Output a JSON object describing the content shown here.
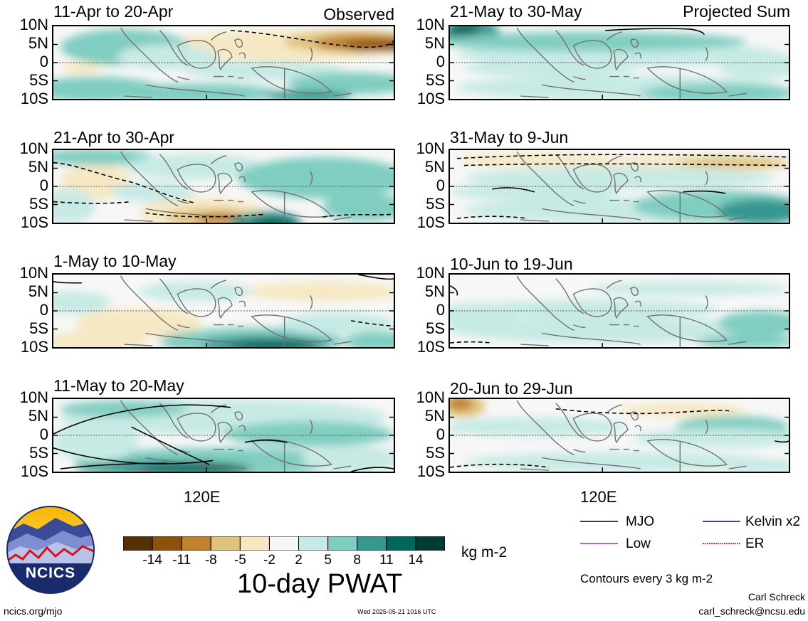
{
  "panels": {
    "left": [
      {
        "label": "11-Apr to 20-Apr",
        "corner": "Observed"
      },
      {
        "label": "21-Apr to 30-Apr",
        "corner": ""
      },
      {
        "label": "1-May to 10-May",
        "corner": ""
      },
      {
        "label": "11-May to 20-May",
        "corner": ""
      }
    ],
    "right": [
      {
        "label": "21-May to 30-May",
        "corner": "Projected Sum"
      },
      {
        "label": "31-May to 9-Jun",
        "corner": ""
      },
      {
        "label": "10-Jun to 19-Jun",
        "corner": ""
      },
      {
        "label": "20-Jun to 29-Jun",
        "corner": ""
      }
    ]
  },
  "y_axis_labels": [
    "10N",
    "5N",
    "0",
    "5S",
    "10S"
  ],
  "x_axis_label": "120E",
  "colorbar": {
    "title": "10-day PWAT",
    "units": "kg m-2",
    "ticks": [
      "-14",
      "-11",
      "-8",
      "-5",
      "-2",
      "2",
      "5",
      "8",
      "11",
      "14"
    ],
    "colors": [
      "#543005",
      "#8c510a",
      "#bf812d",
      "#dfc27d",
      "#f6e8c3",
      "#f7f7f7",
      "#c7eae5",
      "#80cdc1",
      "#35978f",
      "#01665e",
      "#003c30"
    ]
  },
  "legend": {
    "items": [
      {
        "name": "MJO",
        "color": "#000000"
      },
      {
        "name": "Kelvin x2",
        "color": "#0000cc"
      },
      {
        "name": "Low",
        "color": "#9b30d9"
      },
      {
        "name": "ER",
        "color": "#cc0000"
      }
    ],
    "contours_note": "Contours every 3 kg m-2"
  },
  "logo": {
    "text": "NCICS"
  },
  "footer": {
    "site": "ncics.org/mjo",
    "timestamp": "Wed 2025-05-21 1016 UTC",
    "author": "Carl Schreck",
    "email": "carl_schreck@ncsu.edu"
  }
}
